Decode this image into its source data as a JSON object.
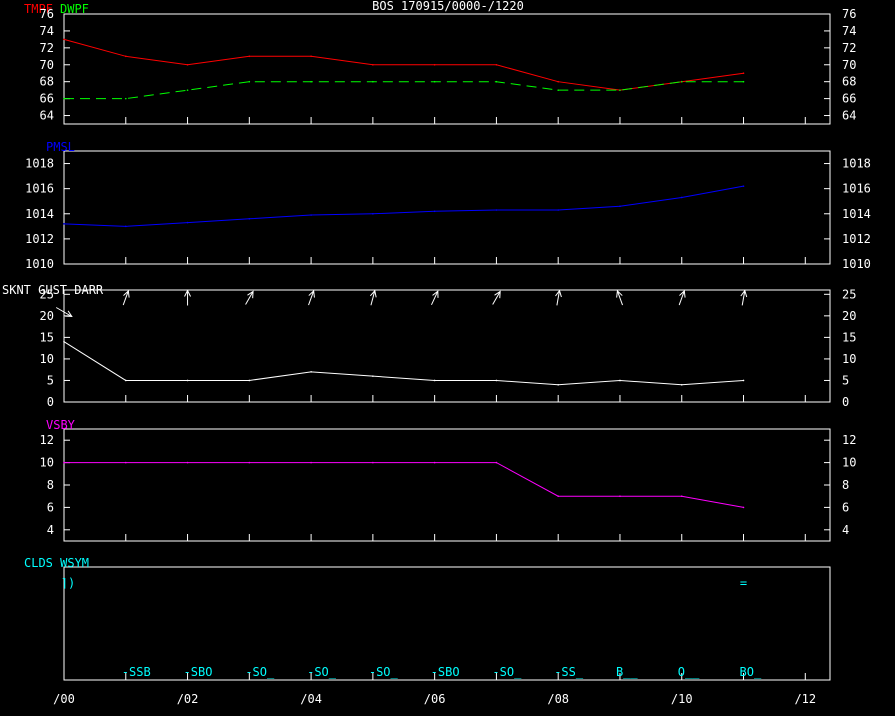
{
  "title": "BOS  170915/0000-/1220",
  "x_ticks": [
    "/00",
    "/02",
    "/04",
    "/06",
    "/08",
    "/10",
    "/12"
  ],
  "colors": {
    "temp": "#ff0000",
    "dewpoint": "#00ff00",
    "pressure": "#0000ff",
    "wind": "#ffffff",
    "visibility": "#ff00ff",
    "clouds": "#00ffff",
    "axes": "#ffffff"
  },
  "chart_data": [
    {
      "type": "line",
      "label": "TMPF DWPF",
      "label_parts": [
        {
          "text": "TMPF",
          "color": "#ff0000"
        },
        {
          "text": "DWPF",
          "color": "#00ff00"
        }
      ],
      "x": [
        0,
        1,
        2,
        3,
        4,
        5,
        6,
        7,
        8,
        9,
        10,
        11
      ],
      "series": [
        {
          "name": "TMPF",
          "values": [
            73,
            71,
            70,
            71,
            71,
            70,
            70,
            70,
            68,
            67,
            68,
            69
          ]
        },
        {
          "name": "DWPF",
          "values": [
            66,
            66,
            67,
            68,
            68,
            68,
            68,
            68,
            67,
            67,
            68,
            68
          ]
        }
      ],
      "yticks": [
        64,
        66,
        68,
        70,
        72,
        74,
        76
      ],
      "ylim": [
        63,
        76
      ]
    },
    {
      "type": "line",
      "label": "PMSL",
      "x": [
        0,
        1,
        2,
        3,
        4,
        5,
        6,
        7,
        8,
        9,
        10,
        11
      ],
      "series": [
        {
          "name": "PMSL",
          "values": [
            1013.2,
            1013.0,
            1013.3,
            1013.6,
            1013.9,
            1014.0,
            1014.2,
            1014.3,
            1014.3,
            1014.6,
            1015.3,
            1016.2
          ]
        }
      ],
      "yticks": [
        1010,
        1012,
        1014,
        1016,
        1018
      ],
      "ylim": [
        1010,
        1019
      ]
    },
    {
      "type": "line",
      "label": "SKNT GUST DARR",
      "x": [
        0,
        1,
        2,
        3,
        4,
        5,
        6,
        7,
        8,
        9,
        10,
        11
      ],
      "series": [
        {
          "name": "SKNT",
          "values": [
            14,
            5,
            5,
            5,
            7,
            6,
            5,
            5,
            4,
            5,
            4,
            5
          ]
        }
      ],
      "wind_dir_deg": [
        300,
        200,
        180,
        210,
        200,
        195,
        205,
        210,
        190,
        160,
        200,
        190
      ],
      "yticks": [
        0,
        5,
        10,
        15,
        20,
        25
      ],
      "ylim": [
        0,
        26
      ]
    },
    {
      "type": "line",
      "label": "VSBY",
      "x": [
        0,
        1,
        2,
        3,
        4,
        5,
        6,
        7,
        8,
        9,
        10,
        11
      ],
      "series": [
        {
          "name": "VSBY",
          "values": [
            10,
            10,
            10,
            10,
            10,
            10,
            10,
            10,
            7,
            7,
            7,
            6
          ]
        }
      ],
      "yticks": [
        4,
        6,
        8,
        10,
        12
      ],
      "ylim": [
        3,
        13
      ]
    },
    {
      "type": "table",
      "label": "CLDS WSYM",
      "wsym": [
        {
          "x": 0,
          "text": "⌉)"
        },
        {
          "x": 11,
          "text": "="
        }
      ],
      "clouds": [
        {
          "x": 1,
          "text": "-SSB"
        },
        {
          "x": 2,
          "text": "-SBO"
        },
        {
          "x": 3,
          "text": "-SO_"
        },
        {
          "x": 4,
          "text": "-SO_"
        },
        {
          "x": 5,
          "text": "-SO_"
        },
        {
          "x": 6,
          "text": "-SBO"
        },
        {
          "x": 7,
          "text": "-SO_"
        },
        {
          "x": 8,
          "text": "-SS_"
        },
        {
          "x": 9,
          "text": "B__"
        },
        {
          "x": 10,
          "text": "O__"
        },
        {
          "x": 11,
          "text": "BO_"
        }
      ]
    }
  ]
}
